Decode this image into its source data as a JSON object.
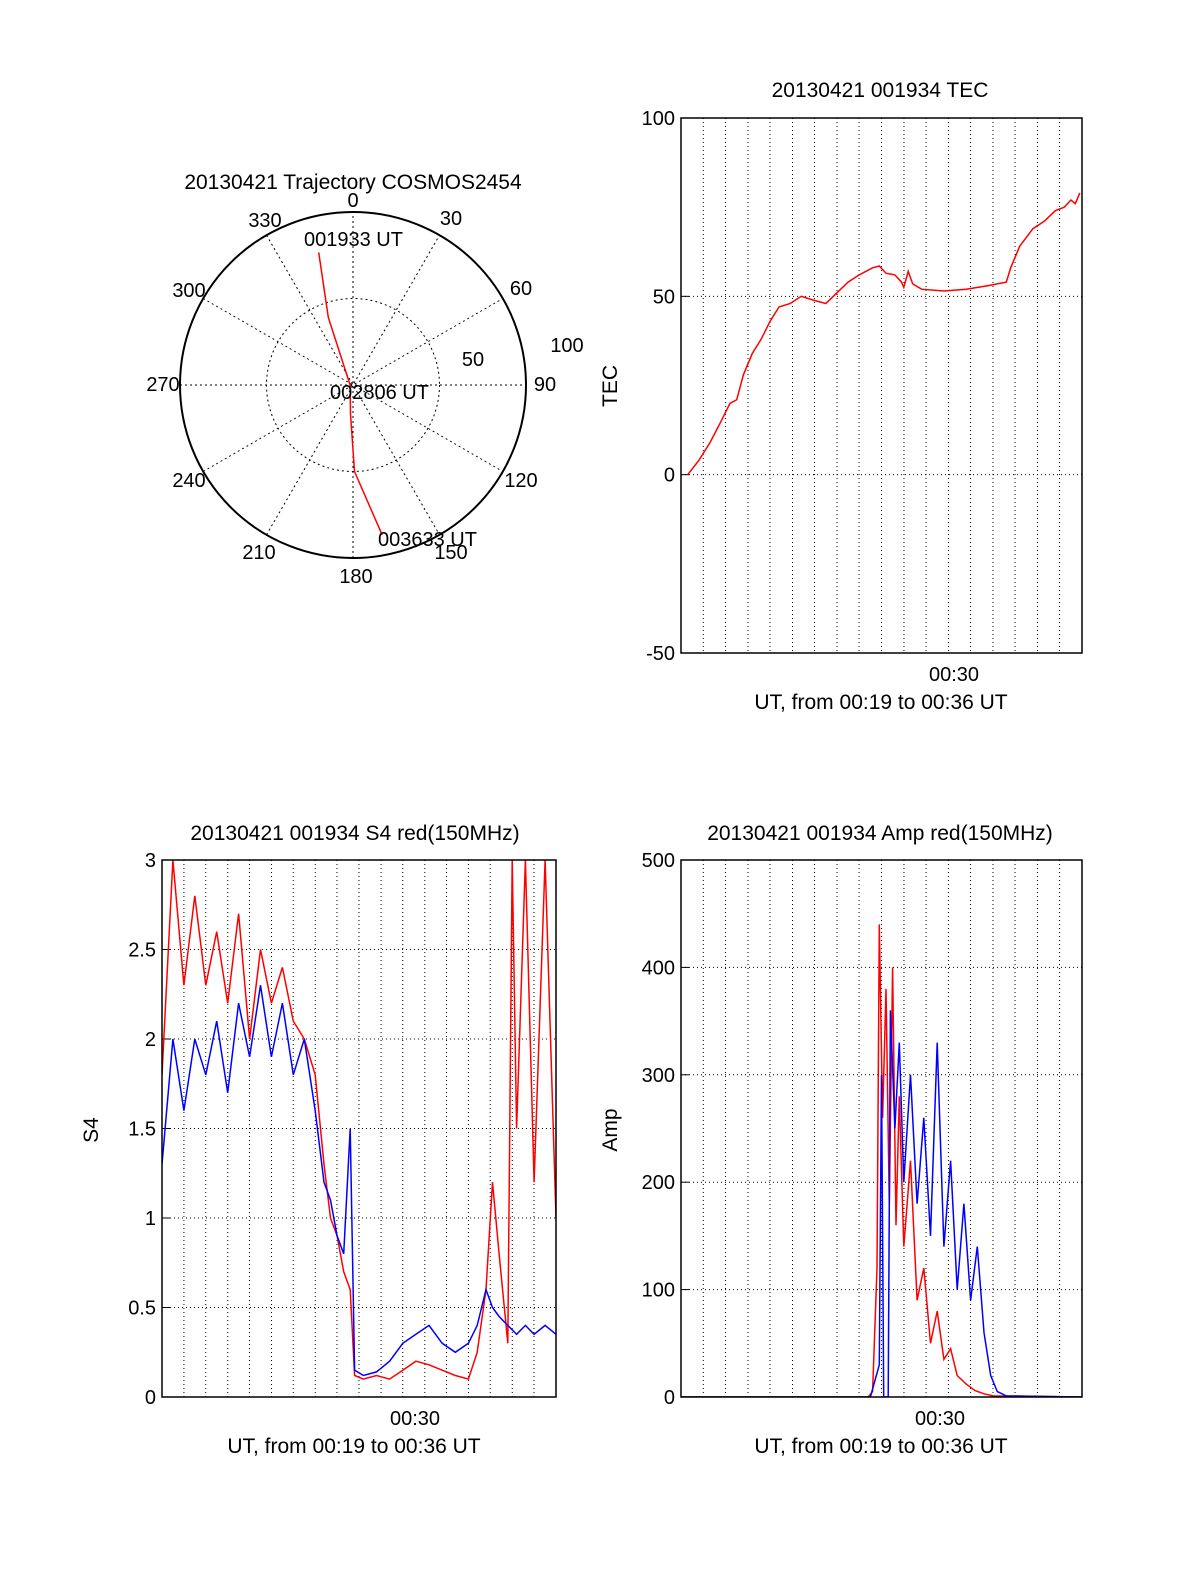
{
  "colors": {
    "red": "#ff0000",
    "blue": "#0000ff",
    "axis": "#000000",
    "grid": "#000000"
  },
  "chart_data": [
    {
      "id": "trajectory",
      "type": "polar-trajectory",
      "title": "20130421 Trajectory COSMOS2454",
      "azimuth_labels": [
        "0",
        "30",
        "60",
        "90",
        "120",
        "150",
        "180",
        "210",
        "240",
        "270",
        "300",
        "330"
      ],
      "radius_labels": [
        "50",
        "100"
      ],
      "rlim": [
        0,
        120
      ],
      "grid": true,
      "annotations": {
        "start": "001933 UT",
        "mid": "002806 UT",
        "end": "003633 UT"
      },
      "series": [
        {
          "color": "red",
          "points": [
            {
              "az": 345.5,
              "r": 95
            },
            {
              "az": 340,
              "r": 50
            },
            {
              "az": 270,
              "r": 2
            },
            {
              "az": 185,
              "r": 20
            },
            {
              "az": 179,
              "r": 60
            },
            {
              "az": 169,
              "r": 106
            }
          ]
        }
      ]
    },
    {
      "id": "tec",
      "type": "line",
      "title": "20130421 001934 TEC",
      "xlabel": "UT, from 00:19 to 00:36 UT",
      "ylabel": "TEC",
      "xtick_labels": [
        "00:30"
      ],
      "ylim": [
        -50,
        100
      ],
      "yticks": [
        "-50",
        "0",
        "50",
        "100"
      ],
      "grid": true,
      "series": [
        {
          "color": "red",
          "points": [
            [
              0.3,
              0
            ],
            [
              0.8,
              4
            ],
            [
              1.3,
              9
            ],
            [
              1.8,
              15
            ],
            [
              2.2,
              20
            ],
            [
              2.5,
              21
            ],
            [
              2.8,
              28
            ],
            [
              3.2,
              34
            ],
            [
              3.6,
              38
            ],
            [
              4.0,
              43
            ],
            [
              4.4,
              47
            ],
            [
              4.9,
              48
            ],
            [
              5.4,
              50
            ],
            [
              5.9,
              49
            ],
            [
              6.5,
              48
            ],
            [
              7.0,
              51
            ],
            [
              7.5,
              54
            ],
            [
              8.0,
              56
            ],
            [
              8.6,
              58
            ],
            [
              8.9,
              58.5
            ],
            [
              9.2,
              56.5
            ],
            [
              9.6,
              56
            ],
            [
              9.9,
              54
            ],
            [
              10.0,
              52.5
            ],
            [
              10.2,
              57
            ],
            [
              10.4,
              53.5
            ],
            [
              10.8,
              52
            ],
            [
              11.8,
              51.5
            ],
            [
              12.8,
              52
            ],
            [
              13.8,
              53
            ],
            [
              14.6,
              54
            ],
            [
              14.8,
              58
            ],
            [
              15.2,
              64
            ],
            [
              15.8,
              69
            ],
            [
              16.3,
              71
            ],
            [
              16.8,
              74
            ],
            [
              17.2,
              75
            ],
            [
              17.5,
              77
            ],
            [
              17.7,
              76
            ],
            [
              17.9,
              79
            ]
          ]
        }
      ]
    },
    {
      "id": "s4",
      "type": "line",
      "title": "20130421 001934 S4 red(150MHz)",
      "xlabel": "UT, from 00:19 to 00:36 UT",
      "ylabel": "S4",
      "xtick_labels": [
        "00:30"
      ],
      "ylim": [
        0,
        3
      ],
      "yticks": [
        "0",
        "0.5",
        "1",
        "1.5",
        "2",
        "2.5",
        "3"
      ],
      "grid": true,
      "series": [
        {
          "name": "",
          "color": "red",
          "points": [
            [
              0.0,
              1.8
            ],
            [
              0.5,
              3.0
            ],
            [
              1.0,
              2.3
            ],
            [
              1.5,
              2.8
            ],
            [
              2.0,
              2.3
            ],
            [
              2.5,
              2.6
            ],
            [
              3.0,
              2.2
            ],
            [
              3.5,
              2.7
            ],
            [
              4.0,
              2.0
            ],
            [
              4.5,
              2.5
            ],
            [
              5.0,
              2.2
            ],
            [
              5.5,
              2.4
            ],
            [
              6.0,
              2.1
            ],
            [
              6.5,
              2.0
            ],
            [
              7.0,
              1.8
            ],
            [
              7.4,
              1.3
            ],
            [
              7.7,
              1.0
            ],
            [
              8.0,
              0.9
            ],
            [
              8.3,
              0.7
            ],
            [
              8.6,
              0.6
            ],
            [
              8.8,
              0.12
            ],
            [
              9.2,
              0.1
            ],
            [
              9.8,
              0.12
            ],
            [
              10.4,
              0.1
            ],
            [
              11.0,
              0.15
            ],
            [
              11.6,
              0.2
            ],
            [
              12.2,
              0.18
            ],
            [
              12.8,
              0.15
            ],
            [
              13.4,
              0.12
            ],
            [
              14.0,
              0.1
            ],
            [
              14.4,
              0.25
            ],
            [
              14.8,
              0.6
            ],
            [
              15.1,
              1.2
            ],
            [
              15.4,
              0.8
            ],
            [
              15.8,
              0.3
            ],
            [
              16.0,
              3.0
            ],
            [
              16.2,
              1.5
            ],
            [
              16.6,
              3.0
            ],
            [
              17.0,
              1.2
            ],
            [
              17.5,
              3.0
            ],
            [
              18.0,
              1.0
            ]
          ]
        },
        {
          "name": "",
          "color": "blue",
          "points": [
            [
              0.0,
              1.3
            ],
            [
              0.5,
              2.0
            ],
            [
              1.0,
              1.6
            ],
            [
              1.5,
              2.0
            ],
            [
              2.0,
              1.8
            ],
            [
              2.5,
              2.1
            ],
            [
              3.0,
              1.7
            ],
            [
              3.5,
              2.2
            ],
            [
              4.0,
              1.9
            ],
            [
              4.5,
              2.3
            ],
            [
              5.0,
              1.9
            ],
            [
              5.5,
              2.2
            ],
            [
              6.0,
              1.8
            ],
            [
              6.5,
              2.0
            ],
            [
              7.0,
              1.6
            ],
            [
              7.4,
              1.2
            ],
            [
              7.7,
              1.1
            ],
            [
              8.0,
              0.9
            ],
            [
              8.3,
              0.8
            ],
            [
              8.6,
              1.5
            ],
            [
              8.8,
              0.15
            ],
            [
              9.2,
              0.12
            ],
            [
              9.8,
              0.14
            ],
            [
              10.4,
              0.2
            ],
            [
              11.0,
              0.3
            ],
            [
              11.6,
              0.35
            ],
            [
              12.2,
              0.4
            ],
            [
              12.8,
              0.3
            ],
            [
              13.4,
              0.25
            ],
            [
              14.0,
              0.3
            ],
            [
              14.4,
              0.4
            ],
            [
              14.8,
              0.6
            ],
            [
              15.1,
              0.5
            ],
            [
              15.4,
              0.45
            ],
            [
              15.8,
              0.4
            ],
            [
              16.2,
              0.35
            ],
            [
              16.6,
              0.4
            ],
            [
              17.0,
              0.35
            ],
            [
              17.5,
              0.4
            ],
            [
              18.0,
              0.35
            ]
          ]
        }
      ]
    },
    {
      "id": "amp",
      "type": "line",
      "title": "20130421 001934 Amp red(150MHz)",
      "xlabel": "UT, from 00:19 to 00:36 UT",
      "ylabel": "Amp",
      "xtick_labels": [
        "00:30"
      ],
      "ylim": [
        0,
        500
      ],
      "yticks": [
        "0",
        "100",
        "200",
        "300",
        "400",
        "500"
      ],
      "grid": true,
      "series": [
        {
          "name": "",
          "color": "red",
          "points": [
            [
              0.0,
              0
            ],
            [
              8.4,
              0
            ],
            [
              8.6,
              5
            ],
            [
              8.8,
              120
            ],
            [
              8.9,
              440
            ],
            [
              9.05,
              260
            ],
            [
              9.2,
              380
            ],
            [
              9.35,
              180
            ],
            [
              9.5,
              400
            ],
            [
              9.65,
              160
            ],
            [
              9.8,
              280
            ],
            [
              10.0,
              140
            ],
            [
              10.3,
              220
            ],
            [
              10.6,
              90
            ],
            [
              10.9,
              120
            ],
            [
              11.2,
              50
            ],
            [
              11.5,
              80
            ],
            [
              11.8,
              35
            ],
            [
              12.1,
              45
            ],
            [
              12.4,
              20
            ],
            [
              12.8,
              12
            ],
            [
              13.2,
              6
            ],
            [
              13.6,
              3
            ],
            [
              14.0,
              1
            ],
            [
              18.0,
              0
            ]
          ]
        },
        {
          "name": "",
          "color": "blue",
          "points": [
            [
              0.0,
              0
            ],
            [
              8.5,
              0
            ],
            [
              8.9,
              30
            ],
            [
              9.0,
              300
            ],
            [
              9.1,
              0
            ],
            [
              9.3,
              0
            ],
            [
              9.4,
              360
            ],
            [
              9.6,
              250
            ],
            [
              9.8,
              330
            ],
            [
              10.0,
              200
            ],
            [
              10.3,
              300
            ],
            [
              10.6,
              180
            ],
            [
              10.9,
              260
            ],
            [
              11.2,
              150
            ],
            [
              11.5,
              330
            ],
            [
              11.8,
              140
            ],
            [
              12.1,
              220
            ],
            [
              12.4,
              100
            ],
            [
              12.7,
              180
            ],
            [
              13.0,
              90
            ],
            [
              13.3,
              140
            ],
            [
              13.6,
              60
            ],
            [
              13.9,
              20
            ],
            [
              14.2,
              5
            ],
            [
              14.6,
              1
            ],
            [
              18.0,
              0
            ]
          ]
        }
      ]
    }
  ]
}
